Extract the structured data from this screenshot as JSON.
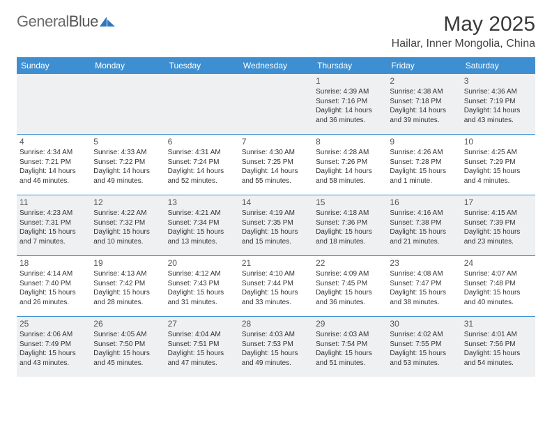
{
  "brand": {
    "part1": "General",
    "part2": "Blue"
  },
  "title": "May 2025",
  "location": "Hailar, Inner Mongolia, China",
  "colors": {
    "header_bg": "#3d8fd1",
    "shade_bg": "#eef0f2",
    "rule": "#3d8fd1",
    "logo_blue": "#2f77bd"
  },
  "weekdays": [
    "Sunday",
    "Monday",
    "Tuesday",
    "Wednesday",
    "Thursday",
    "Friday",
    "Saturday"
  ],
  "weeks": [
    [
      {
        "n": "",
        "sr": "",
        "ss": "",
        "dl": ""
      },
      {
        "n": "",
        "sr": "",
        "ss": "",
        "dl": ""
      },
      {
        "n": "",
        "sr": "",
        "ss": "",
        "dl": ""
      },
      {
        "n": "",
        "sr": "",
        "ss": "",
        "dl": ""
      },
      {
        "n": "1",
        "sr": "Sunrise: 4:39 AM",
        "ss": "Sunset: 7:16 PM",
        "dl": "Daylight: 14 hours and 36 minutes."
      },
      {
        "n": "2",
        "sr": "Sunrise: 4:38 AM",
        "ss": "Sunset: 7:18 PM",
        "dl": "Daylight: 14 hours and 39 minutes."
      },
      {
        "n": "3",
        "sr": "Sunrise: 4:36 AM",
        "ss": "Sunset: 7:19 PM",
        "dl": "Daylight: 14 hours and 43 minutes."
      }
    ],
    [
      {
        "n": "4",
        "sr": "Sunrise: 4:34 AM",
        "ss": "Sunset: 7:21 PM",
        "dl": "Daylight: 14 hours and 46 minutes."
      },
      {
        "n": "5",
        "sr": "Sunrise: 4:33 AM",
        "ss": "Sunset: 7:22 PM",
        "dl": "Daylight: 14 hours and 49 minutes."
      },
      {
        "n": "6",
        "sr": "Sunrise: 4:31 AM",
        "ss": "Sunset: 7:24 PM",
        "dl": "Daylight: 14 hours and 52 minutes."
      },
      {
        "n": "7",
        "sr": "Sunrise: 4:30 AM",
        "ss": "Sunset: 7:25 PM",
        "dl": "Daylight: 14 hours and 55 minutes."
      },
      {
        "n": "8",
        "sr": "Sunrise: 4:28 AM",
        "ss": "Sunset: 7:26 PM",
        "dl": "Daylight: 14 hours and 58 minutes."
      },
      {
        "n": "9",
        "sr": "Sunrise: 4:26 AM",
        "ss": "Sunset: 7:28 PM",
        "dl": "Daylight: 15 hours and 1 minute."
      },
      {
        "n": "10",
        "sr": "Sunrise: 4:25 AM",
        "ss": "Sunset: 7:29 PM",
        "dl": "Daylight: 15 hours and 4 minutes."
      }
    ],
    [
      {
        "n": "11",
        "sr": "Sunrise: 4:23 AM",
        "ss": "Sunset: 7:31 PM",
        "dl": "Daylight: 15 hours and 7 minutes."
      },
      {
        "n": "12",
        "sr": "Sunrise: 4:22 AM",
        "ss": "Sunset: 7:32 PM",
        "dl": "Daylight: 15 hours and 10 minutes."
      },
      {
        "n": "13",
        "sr": "Sunrise: 4:21 AM",
        "ss": "Sunset: 7:34 PM",
        "dl": "Daylight: 15 hours and 13 minutes."
      },
      {
        "n": "14",
        "sr": "Sunrise: 4:19 AM",
        "ss": "Sunset: 7:35 PM",
        "dl": "Daylight: 15 hours and 15 minutes."
      },
      {
        "n": "15",
        "sr": "Sunrise: 4:18 AM",
        "ss": "Sunset: 7:36 PM",
        "dl": "Daylight: 15 hours and 18 minutes."
      },
      {
        "n": "16",
        "sr": "Sunrise: 4:16 AM",
        "ss": "Sunset: 7:38 PM",
        "dl": "Daylight: 15 hours and 21 minutes."
      },
      {
        "n": "17",
        "sr": "Sunrise: 4:15 AM",
        "ss": "Sunset: 7:39 PM",
        "dl": "Daylight: 15 hours and 23 minutes."
      }
    ],
    [
      {
        "n": "18",
        "sr": "Sunrise: 4:14 AM",
        "ss": "Sunset: 7:40 PM",
        "dl": "Daylight: 15 hours and 26 minutes."
      },
      {
        "n": "19",
        "sr": "Sunrise: 4:13 AM",
        "ss": "Sunset: 7:42 PM",
        "dl": "Daylight: 15 hours and 28 minutes."
      },
      {
        "n": "20",
        "sr": "Sunrise: 4:12 AM",
        "ss": "Sunset: 7:43 PM",
        "dl": "Daylight: 15 hours and 31 minutes."
      },
      {
        "n": "21",
        "sr": "Sunrise: 4:10 AM",
        "ss": "Sunset: 7:44 PM",
        "dl": "Daylight: 15 hours and 33 minutes."
      },
      {
        "n": "22",
        "sr": "Sunrise: 4:09 AM",
        "ss": "Sunset: 7:45 PM",
        "dl": "Daylight: 15 hours and 36 minutes."
      },
      {
        "n": "23",
        "sr": "Sunrise: 4:08 AM",
        "ss": "Sunset: 7:47 PM",
        "dl": "Daylight: 15 hours and 38 minutes."
      },
      {
        "n": "24",
        "sr": "Sunrise: 4:07 AM",
        "ss": "Sunset: 7:48 PM",
        "dl": "Daylight: 15 hours and 40 minutes."
      }
    ],
    [
      {
        "n": "25",
        "sr": "Sunrise: 4:06 AM",
        "ss": "Sunset: 7:49 PM",
        "dl": "Daylight: 15 hours and 43 minutes."
      },
      {
        "n": "26",
        "sr": "Sunrise: 4:05 AM",
        "ss": "Sunset: 7:50 PM",
        "dl": "Daylight: 15 hours and 45 minutes."
      },
      {
        "n": "27",
        "sr": "Sunrise: 4:04 AM",
        "ss": "Sunset: 7:51 PM",
        "dl": "Daylight: 15 hours and 47 minutes."
      },
      {
        "n": "28",
        "sr": "Sunrise: 4:03 AM",
        "ss": "Sunset: 7:53 PM",
        "dl": "Daylight: 15 hours and 49 minutes."
      },
      {
        "n": "29",
        "sr": "Sunrise: 4:03 AM",
        "ss": "Sunset: 7:54 PM",
        "dl": "Daylight: 15 hours and 51 minutes."
      },
      {
        "n": "30",
        "sr": "Sunrise: 4:02 AM",
        "ss": "Sunset: 7:55 PM",
        "dl": "Daylight: 15 hours and 53 minutes."
      },
      {
        "n": "31",
        "sr": "Sunrise: 4:01 AM",
        "ss": "Sunset: 7:56 PM",
        "dl": "Daylight: 15 hours and 54 minutes."
      }
    ]
  ]
}
